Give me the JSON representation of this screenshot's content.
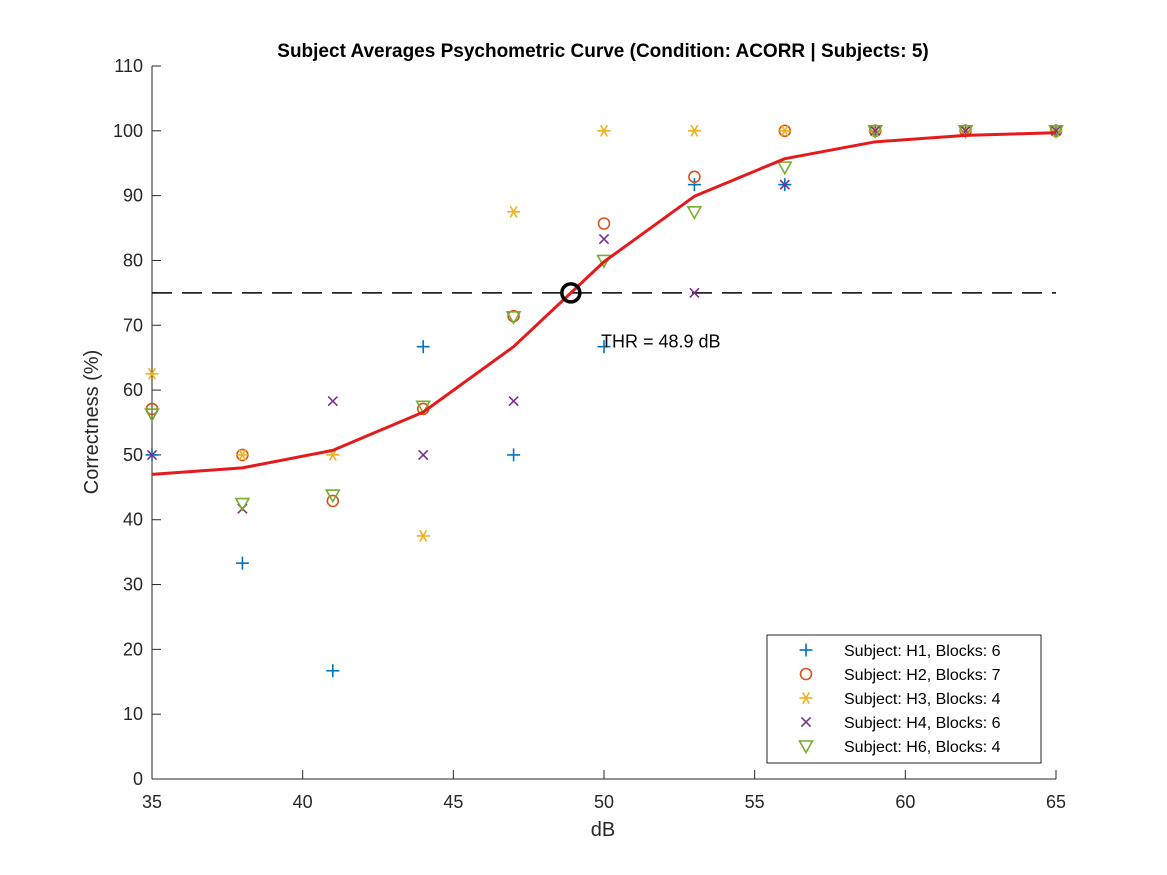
{
  "chart_data": {
    "type": "scatter",
    "title": "Subject Averages Psychometric Curve (Condition: ACORR | Subjects: 5)",
    "xlabel": "dB",
    "ylabel": "Correctness (%)",
    "xlim": [
      35,
      65
    ],
    "ylim": [
      0,
      110
    ],
    "xticks": [
      35,
      40,
      45,
      50,
      55,
      60,
      65
    ],
    "yticks": [
      0,
      10,
      20,
      30,
      40,
      50,
      60,
      70,
      80,
      90,
      100,
      110
    ],
    "grid": false,
    "legend_position": "bottom-right",
    "series": [
      {
        "name": "Subject: H1, Blocks: 6",
        "marker": "plus",
        "color": "#0072BD",
        "x": [
          35,
          38,
          41,
          44,
          47,
          50,
          53,
          56,
          59,
          62,
          65
        ],
        "y": [
          50,
          33.3,
          16.7,
          66.7,
          50,
          66.7,
          91.7,
          91.7,
          100,
          100,
          100
        ]
      },
      {
        "name": "Subject: H2, Blocks: 7",
        "marker": "circle",
        "color": "#D95319",
        "x": [
          35,
          38,
          41,
          44,
          47,
          50,
          53,
          56,
          59,
          62,
          65
        ],
        "y": [
          57.1,
          50,
          42.9,
          57.1,
          71.4,
          85.7,
          92.9,
          100,
          100,
          100,
          100
        ]
      },
      {
        "name": "Subject: H3, Blocks: 4",
        "marker": "asterisk",
        "color": "#EDB120",
        "x": [
          35,
          38,
          41,
          44,
          47,
          50,
          53,
          56,
          59,
          62,
          65
        ],
        "y": [
          62.5,
          50,
          50,
          37.5,
          87.5,
          100,
          100,
          100,
          100,
          100,
          100
        ]
      },
      {
        "name": "Subject: H4, Blocks: 6",
        "marker": "x",
        "color": "#7E2F8E",
        "x": [
          35,
          38,
          41,
          44,
          47,
          50,
          53,
          56,
          59,
          62,
          65
        ],
        "y": [
          50,
          41.7,
          58.3,
          50,
          58.3,
          83.3,
          75,
          91.7,
          100,
          100,
          100
        ]
      },
      {
        "name": "Subject: H6, Blocks: 4",
        "marker": "triangle-down",
        "color": "#77AC30",
        "x": [
          35,
          38,
          41,
          44,
          47,
          50,
          53,
          56,
          59,
          62,
          65
        ],
        "y": [
          56.3,
          42.5,
          43.8,
          57.5,
          71.3,
          80,
          87.5,
          94.4,
          100,
          100,
          100
        ]
      }
    ],
    "fit_curve": {
      "color": "#E41A1C",
      "x": [
        35,
        38,
        41,
        44,
        47,
        50,
        53,
        56,
        59,
        62,
        65
      ],
      "y": [
        47,
        48,
        50.7,
        56.6,
        66.7,
        79.8,
        89.9,
        95.7,
        98.3,
        99.3,
        99.7
      ]
    },
    "threshold_line": {
      "y": 75,
      "style": "dashed",
      "color": "#000000"
    },
    "threshold_point": {
      "x": 48.9,
      "y": 75,
      "marker": "circle"
    },
    "annotation": {
      "text": "THR = 48.9 dB",
      "x": 50,
      "y": 67.5
    }
  }
}
